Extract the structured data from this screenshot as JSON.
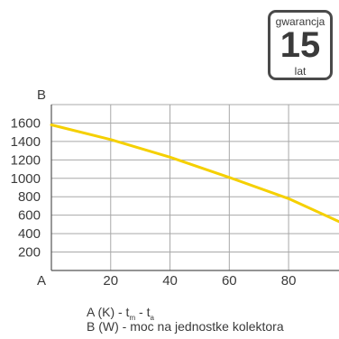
{
  "badge": {
    "top": "gwarancja",
    "number": "15",
    "bottom": "lat"
  },
  "chart_data": {
    "type": "line",
    "xlabel": "A",
    "ylabel": "B",
    "x_ticks": [
      20,
      40,
      60,
      80
    ],
    "y_ticks": [
      200,
      400,
      600,
      800,
      1000,
      1200,
      1400,
      1600
    ],
    "xlim": [
      0,
      97
    ],
    "ylim": [
      0,
      1800
    ],
    "grid": true,
    "series": [
      {
        "x": [
          0,
          20,
          40,
          60,
          80,
          97
        ],
        "y": [
          1580,
          1420,
          1230,
          1010,
          780,
          530
        ],
        "color": "#f5d000"
      }
    ]
  },
  "legend": {
    "a_prefix": "A (K)  - t",
    "a_sub1": "m",
    "a_mid": " - t",
    "a_sub2": "a",
    "b_line": "B (W) - moc na jednostke kolektora"
  }
}
